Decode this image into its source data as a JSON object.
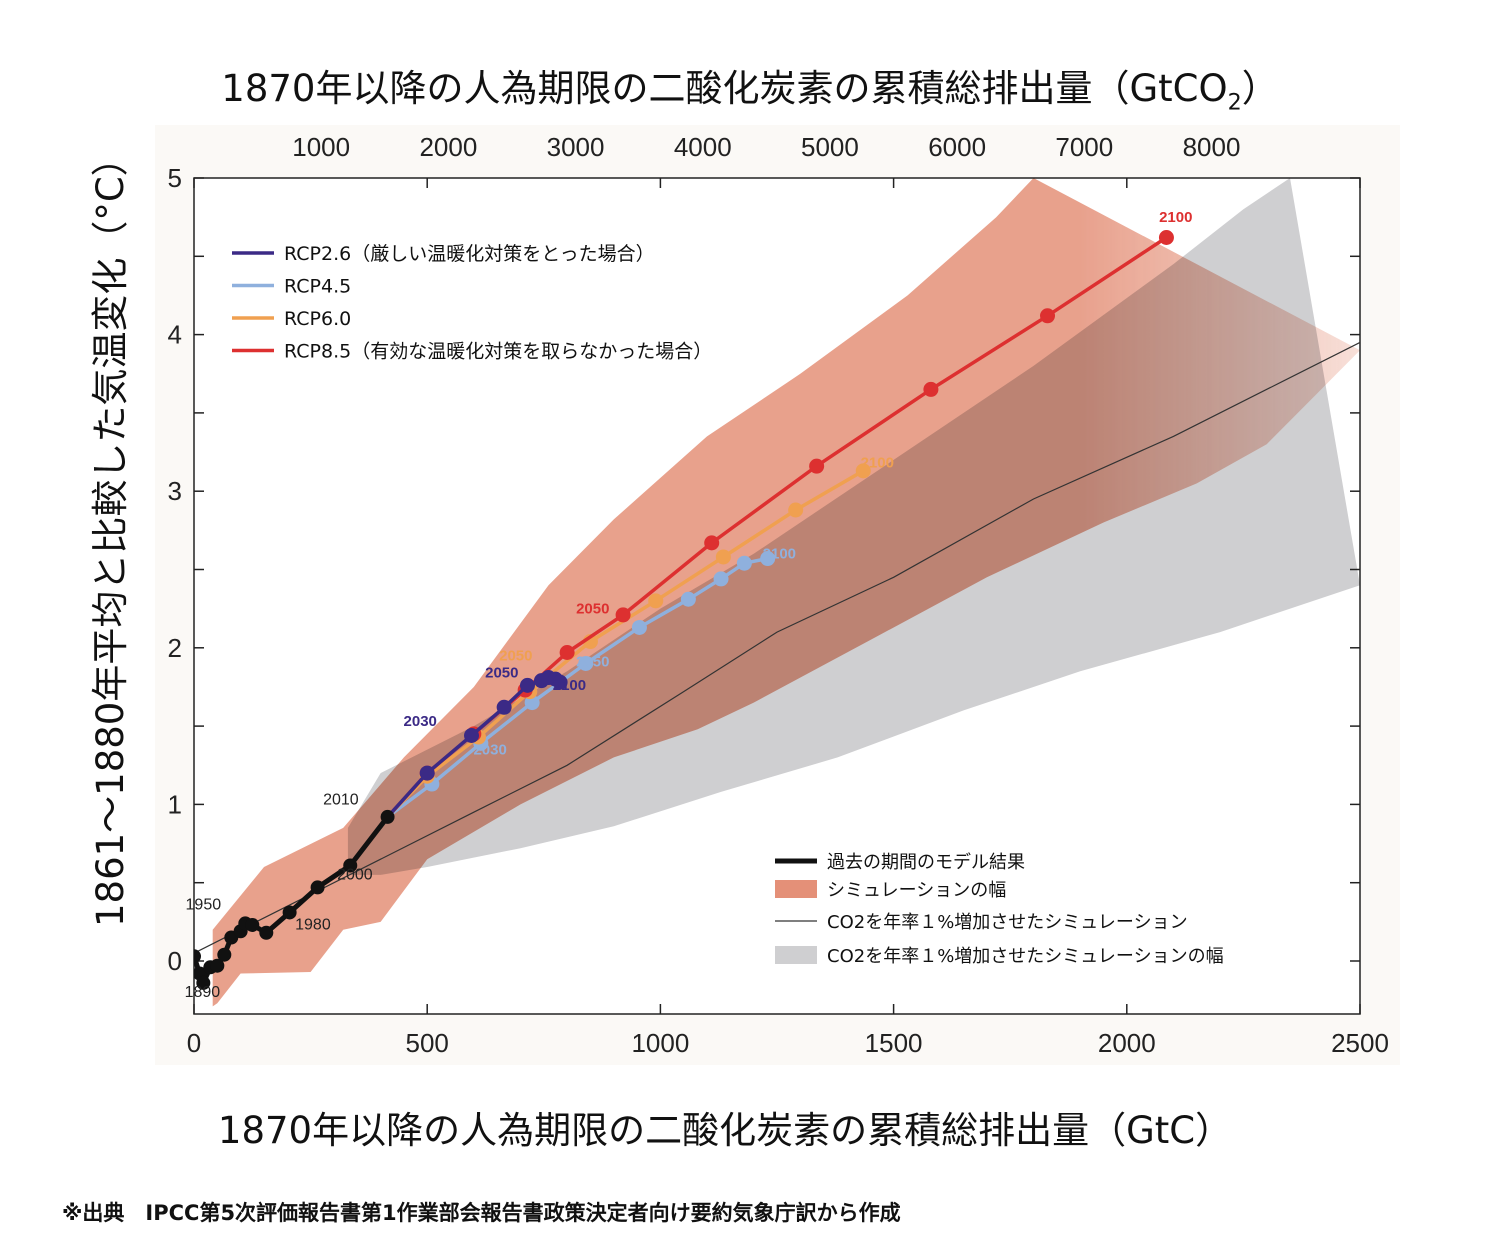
{
  "top_title": "1870年以降の人為期限の二酸化炭素の累積総排出量（GtCO",
  "top_title_sub": "2",
  "top_title_end": "）",
  "bottom_title": "1870年以降の人為期限の二酸化炭素の累積総排出量（GtC）",
  "y_title": "1861～1880年平均と比較した気温変化（°C）",
  "source": "※出典　IPCC第5次評価報告書第1作業部会報告書政策決定者向け要約気象庁訳から作成",
  "colors": {
    "rcp26": "#3b2a86",
    "rcp45": "#8fb0dd",
    "rcp60": "#f0a050",
    "rcp85": "#dd3030",
    "historical": "#111111",
    "sim_range": "#e49078",
    "co2_range": "#cfcfd1"
  },
  "chart_data": {
    "type": "line",
    "xlabel": "1870年以降の人為期限の二酸化炭素の累積総排出量（GtC）",
    "ylabel": "1861～1880年平均と比較した気温変化（°C）",
    "top_axis_label": "1870年以降の人為期限の二酸化炭素の累積総排出量（GtCO2）",
    "xlim": [
      0,
      2500
    ],
    "ylim": [
      -0.33,
      5
    ],
    "x_ticks": [
      0,
      500,
      1000,
      1500,
      2000,
      2500
    ],
    "y_ticks": [
      0,
      1,
      2,
      3,
      4,
      5
    ],
    "top_ticks": [
      1000,
      2000,
      3000,
      4000,
      5000,
      6000,
      7000,
      8000
    ],
    "legend_position": "top-left",
    "legend": [
      {
        "key": "rcp26",
        "label": "RCP2.6（厳しい温暖化対策をとった場合）"
      },
      {
        "key": "rcp45",
        "label": "RCP4.5"
      },
      {
        "key": "rcp60",
        "label": "RCP6.0"
      },
      {
        "key": "rcp85",
        "label": "RCP8.5（有効な温暖化対策を取らなかった場合）"
      }
    ],
    "legend2_position": "bottom-right",
    "legend2": [
      {
        "kind": "thickline",
        "label": "過去の期間のモデル結果"
      },
      {
        "kind": "swatch-sim",
        "label": "シミュレーションの幅"
      },
      {
        "kind": "thinline",
        "label": "CO2を年率１%増加させたシミュレーション"
      },
      {
        "kind": "swatch-co2",
        "label": "CO2を年率１%増加させたシミュレーションの幅"
      }
    ],
    "series": [
      {
        "key": "historical",
        "name": "過去の期間のモデル結果",
        "points": [
          [
            0,
            0.03
          ],
          [
            12,
            -0.08
          ],
          [
            20,
            -0.14
          ],
          [
            35,
            -0.04
          ],
          [
            50,
            -0.03
          ],
          [
            65,
            0.04
          ],
          [
            80,
            0.15
          ],
          [
            100,
            0.19
          ],
          [
            110,
            0.24
          ],
          [
            125,
            0.23
          ],
          [
            155,
            0.18
          ],
          [
            205,
            0.31
          ],
          [
            265,
            0.47
          ],
          [
            335,
            0.61
          ],
          [
            415,
            0.92
          ]
        ],
        "labels": [
          [
            "1950",
            20,
            0.33
          ],
          [
            "1890",
            18,
            -0.23
          ],
          [
            "1980",
            255,
            0.2
          ],
          [
            "2000",
            345,
            0.52
          ],
          [
            "2010",
            315,
            1.0
          ]
        ]
      },
      {
        "key": "rcp26",
        "name": "RCP2.6",
        "points": [
          [
            415,
            0.92
          ],
          [
            500,
            1.2
          ],
          [
            595,
            1.44
          ],
          [
            665,
            1.62
          ],
          [
            715,
            1.76
          ],
          [
            745,
            1.79
          ],
          [
            760,
            1.81
          ],
          [
            775,
            1.8
          ],
          [
            785,
            1.78
          ]
        ],
        "labels": [
          [
            "2030",
            485,
            1.5
          ],
          [
            "2050",
            660,
            1.81
          ],
          [
            "2100",
            805,
            1.73
          ]
        ]
      },
      {
        "key": "rcp45",
        "name": "RCP4.5",
        "points": [
          [
            415,
            0.92
          ],
          [
            510,
            1.13
          ],
          [
            615,
            1.39
          ],
          [
            725,
            1.65
          ],
          [
            840,
            1.9
          ],
          [
            955,
            2.13
          ],
          [
            1060,
            2.31
          ],
          [
            1130,
            2.44
          ],
          [
            1180,
            2.54
          ],
          [
            1230,
            2.57
          ]
        ],
        "labels": [
          [
            "2030",
            635,
            1.32
          ],
          [
            "2050",
            855,
            1.88
          ],
          [
            "2100",
            1255,
            2.57
          ]
        ]
      },
      {
        "key": "rcp60",
        "name": "RCP6.0",
        "points": [
          [
            415,
            0.92
          ],
          [
            500,
            1.18
          ],
          [
            610,
            1.43
          ],
          [
            720,
            1.72
          ],
          [
            850,
            2.04
          ],
          [
            990,
            2.3
          ],
          [
            1135,
            2.58
          ],
          [
            1290,
            2.88
          ],
          [
            1435,
            3.13
          ]
        ],
        "labels": [
          [
            "2050",
            690,
            1.92
          ],
          [
            "2100",
            1465,
            3.15
          ]
        ]
      },
      {
        "key": "rcp85",
        "name": "RCP8.5",
        "points": [
          [
            415,
            0.92
          ],
          [
            500,
            1.2
          ],
          [
            600,
            1.45
          ],
          [
            710,
            1.73
          ],
          [
            800,
            1.97
          ],
          [
            920,
            2.21
          ],
          [
            1110,
            2.67
          ],
          [
            1335,
            3.16
          ],
          [
            1580,
            3.65
          ],
          [
            1830,
            4.12
          ],
          [
            2085,
            4.62
          ]
        ],
        "labels": [
          [
            "2050",
            855,
            2.22
          ],
          [
            "2100",
            2105,
            4.72
          ]
        ]
      },
      {
        "key": "co2",
        "name": "CO2を年率１%増加させたシミュレーション",
        "points": [
          [
            0,
            0.05
          ],
          [
            200,
            0.35
          ],
          [
            400,
            0.65
          ],
          [
            600,
            0.95
          ],
          [
            800,
            1.25
          ],
          [
            1050,
            1.72
          ],
          [
            1250,
            2.1
          ],
          [
            1500,
            2.45
          ],
          [
            1800,
            2.95
          ],
          [
            2100,
            3.35
          ],
          [
            2500,
            3.95
          ]
        ]
      }
    ],
    "ranges": [
      {
        "key": "co2_range",
        "name": "CO2を年率１%増加させたシミュレーションの幅",
        "upper": [
          [
            330,
            0.85
          ],
          [
            400,
            1.2
          ],
          [
            600,
            1.5
          ],
          [
            800,
            1.85
          ],
          [
            1000,
            2.25
          ],
          [
            1200,
            2.6
          ],
          [
            1500,
            3.2
          ],
          [
            1800,
            3.8
          ],
          [
            2100,
            4.45
          ],
          [
            2250,
            4.8
          ],
          [
            2350,
            5.0
          ]
        ],
        "lower": [
          [
            2500,
            2.4
          ],
          [
            2200,
            2.1
          ],
          [
            1900,
            1.85
          ],
          [
            1650,
            1.6
          ],
          [
            1380,
            1.3
          ],
          [
            1130,
            1.08
          ],
          [
            900,
            0.86
          ],
          [
            700,
            0.72
          ],
          [
            500,
            0.6
          ],
          [
            400,
            0.55
          ],
          [
            330,
            0.55
          ]
        ]
      },
      {
        "key": "sim_range",
        "name": "シミュレーションの幅",
        "upper": [
          [
            40,
            0.2
          ],
          [
            150,
            0.6
          ],
          [
            320,
            0.85
          ],
          [
            450,
            1.3
          ],
          [
            600,
            1.75
          ],
          [
            760,
            2.4
          ],
          [
            900,
            2.82
          ],
          [
            1100,
            3.35
          ],
          [
            1300,
            3.75
          ],
          [
            1530,
            4.25
          ],
          [
            1720,
            4.75
          ],
          [
            1800,
            5.0
          ]
        ],
        "lower": [
          [
            2500,
            3.9
          ],
          [
            2400,
            3.6
          ],
          [
            2300,
            3.3
          ],
          [
            2150,
            3.05
          ],
          [
            1950,
            2.8
          ],
          [
            1700,
            2.45
          ],
          [
            1450,
            2.05
          ],
          [
            1200,
            1.65
          ],
          [
            1080,
            1.48
          ],
          [
            900,
            1.3
          ],
          [
            700,
            1.0
          ],
          [
            500,
            0.65
          ],
          [
            400,
            0.25
          ],
          [
            320,
            0.2
          ],
          [
            250,
            -0.07
          ],
          [
            100,
            -0.08
          ],
          [
            50,
            -0.27
          ],
          [
            40,
            -0.29
          ]
        ]
      }
    ]
  }
}
